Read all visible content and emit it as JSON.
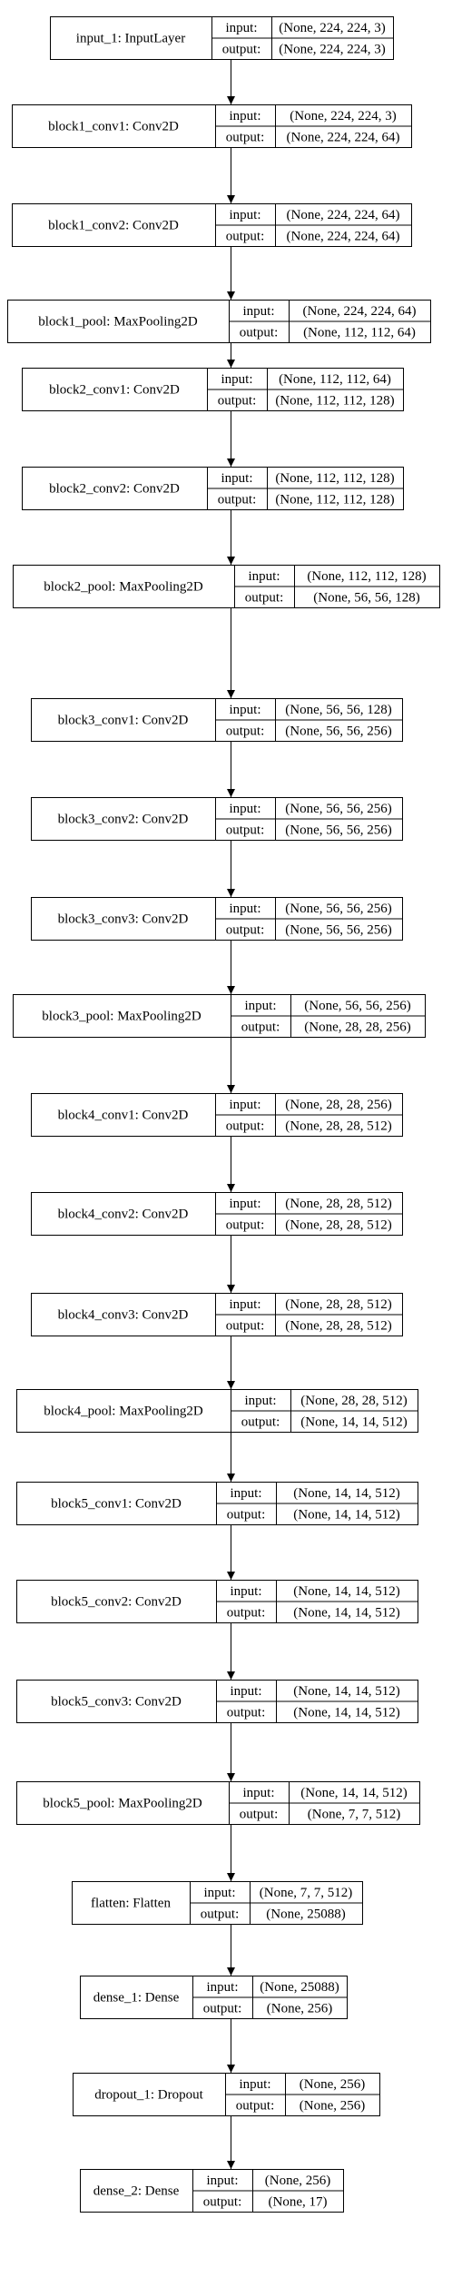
{
  "labels": {
    "input": "input:",
    "output": "output:"
  },
  "layers": [
    {
      "name": "input_1: InputLayer",
      "input": "(None, 224, 224, 3)",
      "output": "(None, 224, 224, 3)"
    },
    {
      "name": "block1_conv1: Conv2D",
      "input": "(None, 224, 224, 3)",
      "output": "(None, 224, 224, 64)"
    },
    {
      "name": "block1_conv2: Conv2D",
      "input": "(None, 224, 224, 64)",
      "output": "(None, 224, 224, 64)"
    },
    {
      "name": "block1_pool: MaxPooling2D",
      "input": "(None, 224, 224, 64)",
      "output": "(None, 112, 112, 64)"
    },
    {
      "name": "block2_conv1: Conv2D",
      "input": "(None, 112, 112, 64)",
      "output": "(None, 112, 112, 128)"
    },
    {
      "name": "block2_conv2: Conv2D",
      "input": "(None, 112, 112, 128)",
      "output": "(None, 112, 112, 128)"
    },
    {
      "name": "block2_pool: MaxPooling2D",
      "input": "(None, 112, 112, 128)",
      "output": "(None, 56, 56, 128)"
    },
    {
      "name": "block3_conv1: Conv2D",
      "input": "(None, 56, 56, 128)",
      "output": "(None, 56, 56, 256)"
    },
    {
      "name": "block3_conv2: Conv2D",
      "input": "(None, 56, 56, 256)",
      "output": "(None, 56, 56, 256)"
    },
    {
      "name": "block3_conv3: Conv2D",
      "input": "(None, 56, 56, 256)",
      "output": "(None, 56, 56, 256)"
    },
    {
      "name": "block3_pool: MaxPooling2D",
      "input": "(None, 56, 56, 256)",
      "output": "(None, 28, 28, 256)"
    },
    {
      "name": "block4_conv1: Conv2D",
      "input": "(None, 28, 28, 256)",
      "output": "(None, 28, 28, 512)"
    },
    {
      "name": "block4_conv2: Conv2D",
      "input": "(None, 28, 28, 512)",
      "output": "(None, 28, 28, 512)"
    },
    {
      "name": "block4_conv3: Conv2D",
      "input": "(None, 28, 28, 512)",
      "output": "(None, 28, 28, 512)"
    },
    {
      "name": "block4_pool: MaxPooling2D",
      "input": "(None, 28, 28, 512)",
      "output": "(None, 14, 14, 512)"
    },
    {
      "name": "block5_conv1: Conv2D",
      "input": "(None, 14, 14, 512)",
      "output": "(None, 14, 14, 512)"
    },
    {
      "name": "block5_conv2: Conv2D",
      "input": "(None, 14, 14, 512)",
      "output": "(None, 14, 14, 512)"
    },
    {
      "name": "block5_conv3: Conv2D",
      "input": "(None, 14, 14, 512)",
      "output": "(None, 14, 14, 512)"
    },
    {
      "name": "block5_pool: MaxPooling2D",
      "input": "(None, 14, 14, 512)",
      "output": "(None, 7, 7, 512)"
    },
    {
      "name": "flatten: Flatten",
      "input": "(None, 7, 7, 512)",
      "output": "(None, 25088)"
    },
    {
      "name": "dense_1: Dense",
      "input": "(None, 25088)",
      "output": "(None, 256)"
    },
    {
      "name": "dropout_1: Dropout",
      "input": "(None, 256)",
      "output": "(None, 256)"
    },
    {
      "name": "dense_2: Dense",
      "input": "(None, 256)",
      "output": "(None, 17)"
    }
  ]
}
